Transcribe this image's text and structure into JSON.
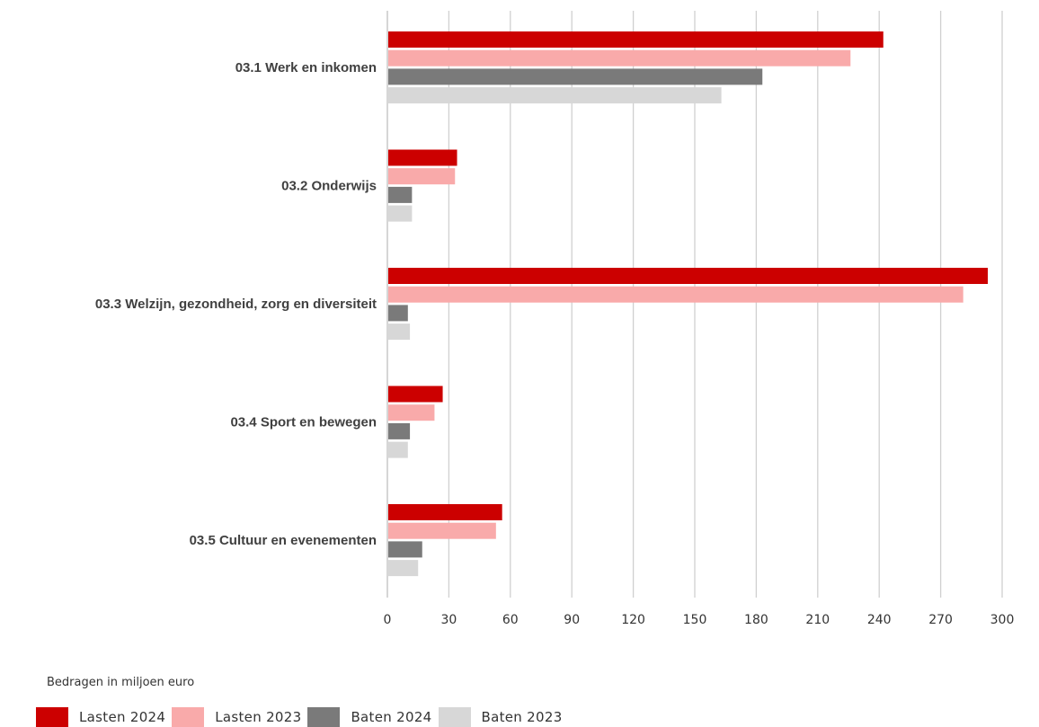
{
  "chart_data": {
    "type": "bar",
    "orientation": "horizontal",
    "categories": [
      "03.1 Werk en inkomen",
      "03.2 Onderwijs",
      "03.3 Welzijn, gezondheid, zorg en diversiteit",
      "03.4 Sport en bewegen",
      "03.5 Cultuur en evenementen"
    ],
    "series": [
      {
        "name": "Lasten 2024",
        "color": "#cc0000",
        "values": [
          242,
          34,
          293,
          27,
          56
        ]
      },
      {
        "name": "Lasten 2023",
        "color": "#f9aaaa",
        "values": [
          226,
          33,
          281,
          23,
          53
        ]
      },
      {
        "name": "Baten 2024",
        "color": "#7a7a7a",
        "values": [
          183,
          12,
          10,
          11,
          17
        ]
      },
      {
        "name": "Baten 2023",
        "color": "#d7d7d7",
        "values": [
          163,
          12,
          11,
          10,
          15
        ]
      }
    ],
    "xlim": [
      0,
      300
    ],
    "xticks": [
      "0",
      "30",
      "60",
      "90",
      "120",
      "150",
      "180",
      "210",
      "240",
      "270",
      "300"
    ],
    "grid": true,
    "legend_position": "bottom-left",
    "note": "Bedragen in miljoen euro"
  }
}
